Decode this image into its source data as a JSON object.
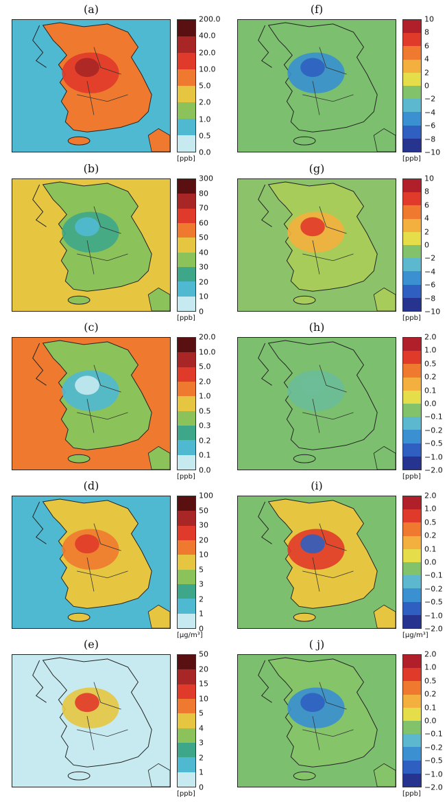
{
  "panels": [
    {
      "label": "(a)",
      "ticks": [
        "200.0",
        "40.0",
        "20.0",
        "10.0",
        "5.0",
        "2.0",
        "1.0",
        "0.5",
        "0.0"
      ],
      "unit": "[ppb]",
      "colors": [
        "#5a1010",
        "#a82626",
        "#e03a2a",
        "#ef7a2f",
        "#e6c640",
        "#8cc25a",
        "#50b9d2",
        "#c6eaf0"
      ],
      "bg": "#50b9d2",
      "land": "#ef7a2f",
      "core": "#e03a2a",
      "hot": "#a82626"
    },
    {
      "label": "(f)",
      "ticks": [
        "10",
        "8",
        "6",
        "4",
        "2",
        "0",
        "−2",
        "−4",
        "−6",
        "−8",
        "−10"
      ],
      "unit": "[ppb]",
      "colors": [
        "#b01f2a",
        "#e03a2a",
        "#ef7a2f",
        "#f4b03e",
        "#e6dd4a",
        "#82c26a",
        "#5cb8cf",
        "#3a90d0",
        "#2f5fc0",
        "#27348f"
      ],
      "bg": "#7cbf6e",
      "land": "#7cbf6e",
      "core": "#3a90d0",
      "hot": "#2f5fc0"
    },
    {
      "label": "(b)",
      "ticks": [
        "300",
        "80",
        "70",
        "60",
        "50",
        "40",
        "30",
        "20",
        "10",
        "0"
      ],
      "unit": "[ppb]",
      "colors": [
        "#5a1010",
        "#a82626",
        "#e03a2a",
        "#ef7a2f",
        "#e6c640",
        "#8cc25a",
        "#3ea78a",
        "#50b9d2",
        "#c6eaf0"
      ],
      "bg": "#e6c640",
      "land": "#8cc25a",
      "core": "#3ea78a",
      "hot": "#50b9d2"
    },
    {
      "label": "(g)",
      "ticks": [
        "10",
        "8",
        "6",
        "4",
        "2",
        "0",
        "−2",
        "−4",
        "−6",
        "−8",
        "−10"
      ],
      "unit": "[ppb]",
      "colors": [
        "#b01f2a",
        "#e03a2a",
        "#ef7a2f",
        "#f4b03e",
        "#e6dd4a",
        "#82c26a",
        "#5cb8cf",
        "#3a90d0",
        "#2f5fc0",
        "#27348f"
      ],
      "bg": "#8cc26a",
      "land": "#a8cc5a",
      "core": "#f4b03e",
      "hot": "#e03a2a"
    },
    {
      "label": "(c)",
      "ticks": [
        "20.0",
        "10.0",
        "5.0",
        "2.0",
        "1.0",
        "0.5",
        "0.3",
        "0.2",
        "0.1",
        "0.0"
      ],
      "unit": "[ppb]",
      "colors": [
        "#5a1010",
        "#a82626",
        "#e03a2a",
        "#ef7a2f",
        "#e6c640",
        "#8cc25a",
        "#3ea78a",
        "#50b9d2",
        "#c6eaf0"
      ],
      "bg": "#ef7a2f",
      "land": "#8cc25a",
      "core": "#50b9d2",
      "hot": "#c6eaf0"
    },
    {
      "label": "(h)",
      "ticks": [
        "2.0",
        "1.0",
        "0.5",
        "0.2",
        "0.1",
        "0.0",
        "−0.1",
        "−0.2",
        "−0.5",
        "−1.0",
        "−2.0"
      ],
      "unit": "[ppb]",
      "colors": [
        "#b01f2a",
        "#e03a2a",
        "#ef7a2f",
        "#f4b03e",
        "#e6dd4a",
        "#82c26a",
        "#5cb8cf",
        "#3a90d0",
        "#2f5fc0",
        "#27348f"
      ],
      "bg": "#7cbf6e",
      "land": "#7cbf6e",
      "core": "#6cbd98",
      "hot": "#6cbd98"
    },
    {
      "label": "(d)",
      "ticks": [
        "100",
        "50",
        "30",
        "20",
        "10",
        "5",
        "3",
        "2",
        "1",
        "0"
      ],
      "unit": "[μg/m³]",
      "colors": [
        "#5a1010",
        "#a82626",
        "#e03a2a",
        "#ef7a2f",
        "#e6c640",
        "#8cc25a",
        "#3ea78a",
        "#50b9d2",
        "#c6eaf0"
      ],
      "bg": "#50b9d2",
      "land": "#e6c640",
      "core": "#ef7a2f",
      "hot": "#e03a2a"
    },
    {
      "label": "(i)",
      "ticks": [
        "2.0",
        "1.0",
        "0.5",
        "0.2",
        "0.1",
        "0.0",
        "−0.1",
        "−0.2",
        "−0.5",
        "−1.0",
        "−2.0"
      ],
      "unit": "[μg/m³]",
      "colors": [
        "#b01f2a",
        "#e03a2a",
        "#ef7a2f",
        "#f4b03e",
        "#e6dd4a",
        "#82c26a",
        "#5cb8cf",
        "#3a90d0",
        "#2f5fc0",
        "#27348f"
      ],
      "bg": "#7cbf6e",
      "land": "#e6c640",
      "core": "#e03a2a",
      "hot": "#2f5fc0"
    },
    {
      "label": "(e)",
      "ticks": [
        "50",
        "20",
        "15",
        "10",
        "5",
        "4",
        "3",
        "2",
        "1",
        "0"
      ],
      "unit": "[ppb]",
      "colors": [
        "#5a1010",
        "#a82626",
        "#e03a2a",
        "#ef7a2f",
        "#e6c640",
        "#8cc25a",
        "#3ea78a",
        "#50b9d2",
        "#c6eaf0"
      ],
      "bg": "#c6eaf0",
      "land": "#c6eaf0",
      "core": "#e6c640",
      "hot": "#e03a2a"
    },
    {
      "label": "( j)",
      "ticks": [
        "2.0",
        "1.0",
        "0.5",
        "0.2",
        "0.1",
        "0.0",
        "−0.1",
        "−0.2",
        "−0.5",
        "−1.0",
        "−2.0"
      ],
      "unit": "[ppb]",
      "colors": [
        "#b01f2a",
        "#e03a2a",
        "#ef7a2f",
        "#f4b03e",
        "#e6dd4a",
        "#82c26a",
        "#5cb8cf",
        "#3a90d0",
        "#2f5fc0",
        "#27348f"
      ],
      "bg": "#7cbf6e",
      "land": "#86c46a",
      "core": "#3a90d0",
      "hot": "#2f5fc0"
    }
  ]
}
